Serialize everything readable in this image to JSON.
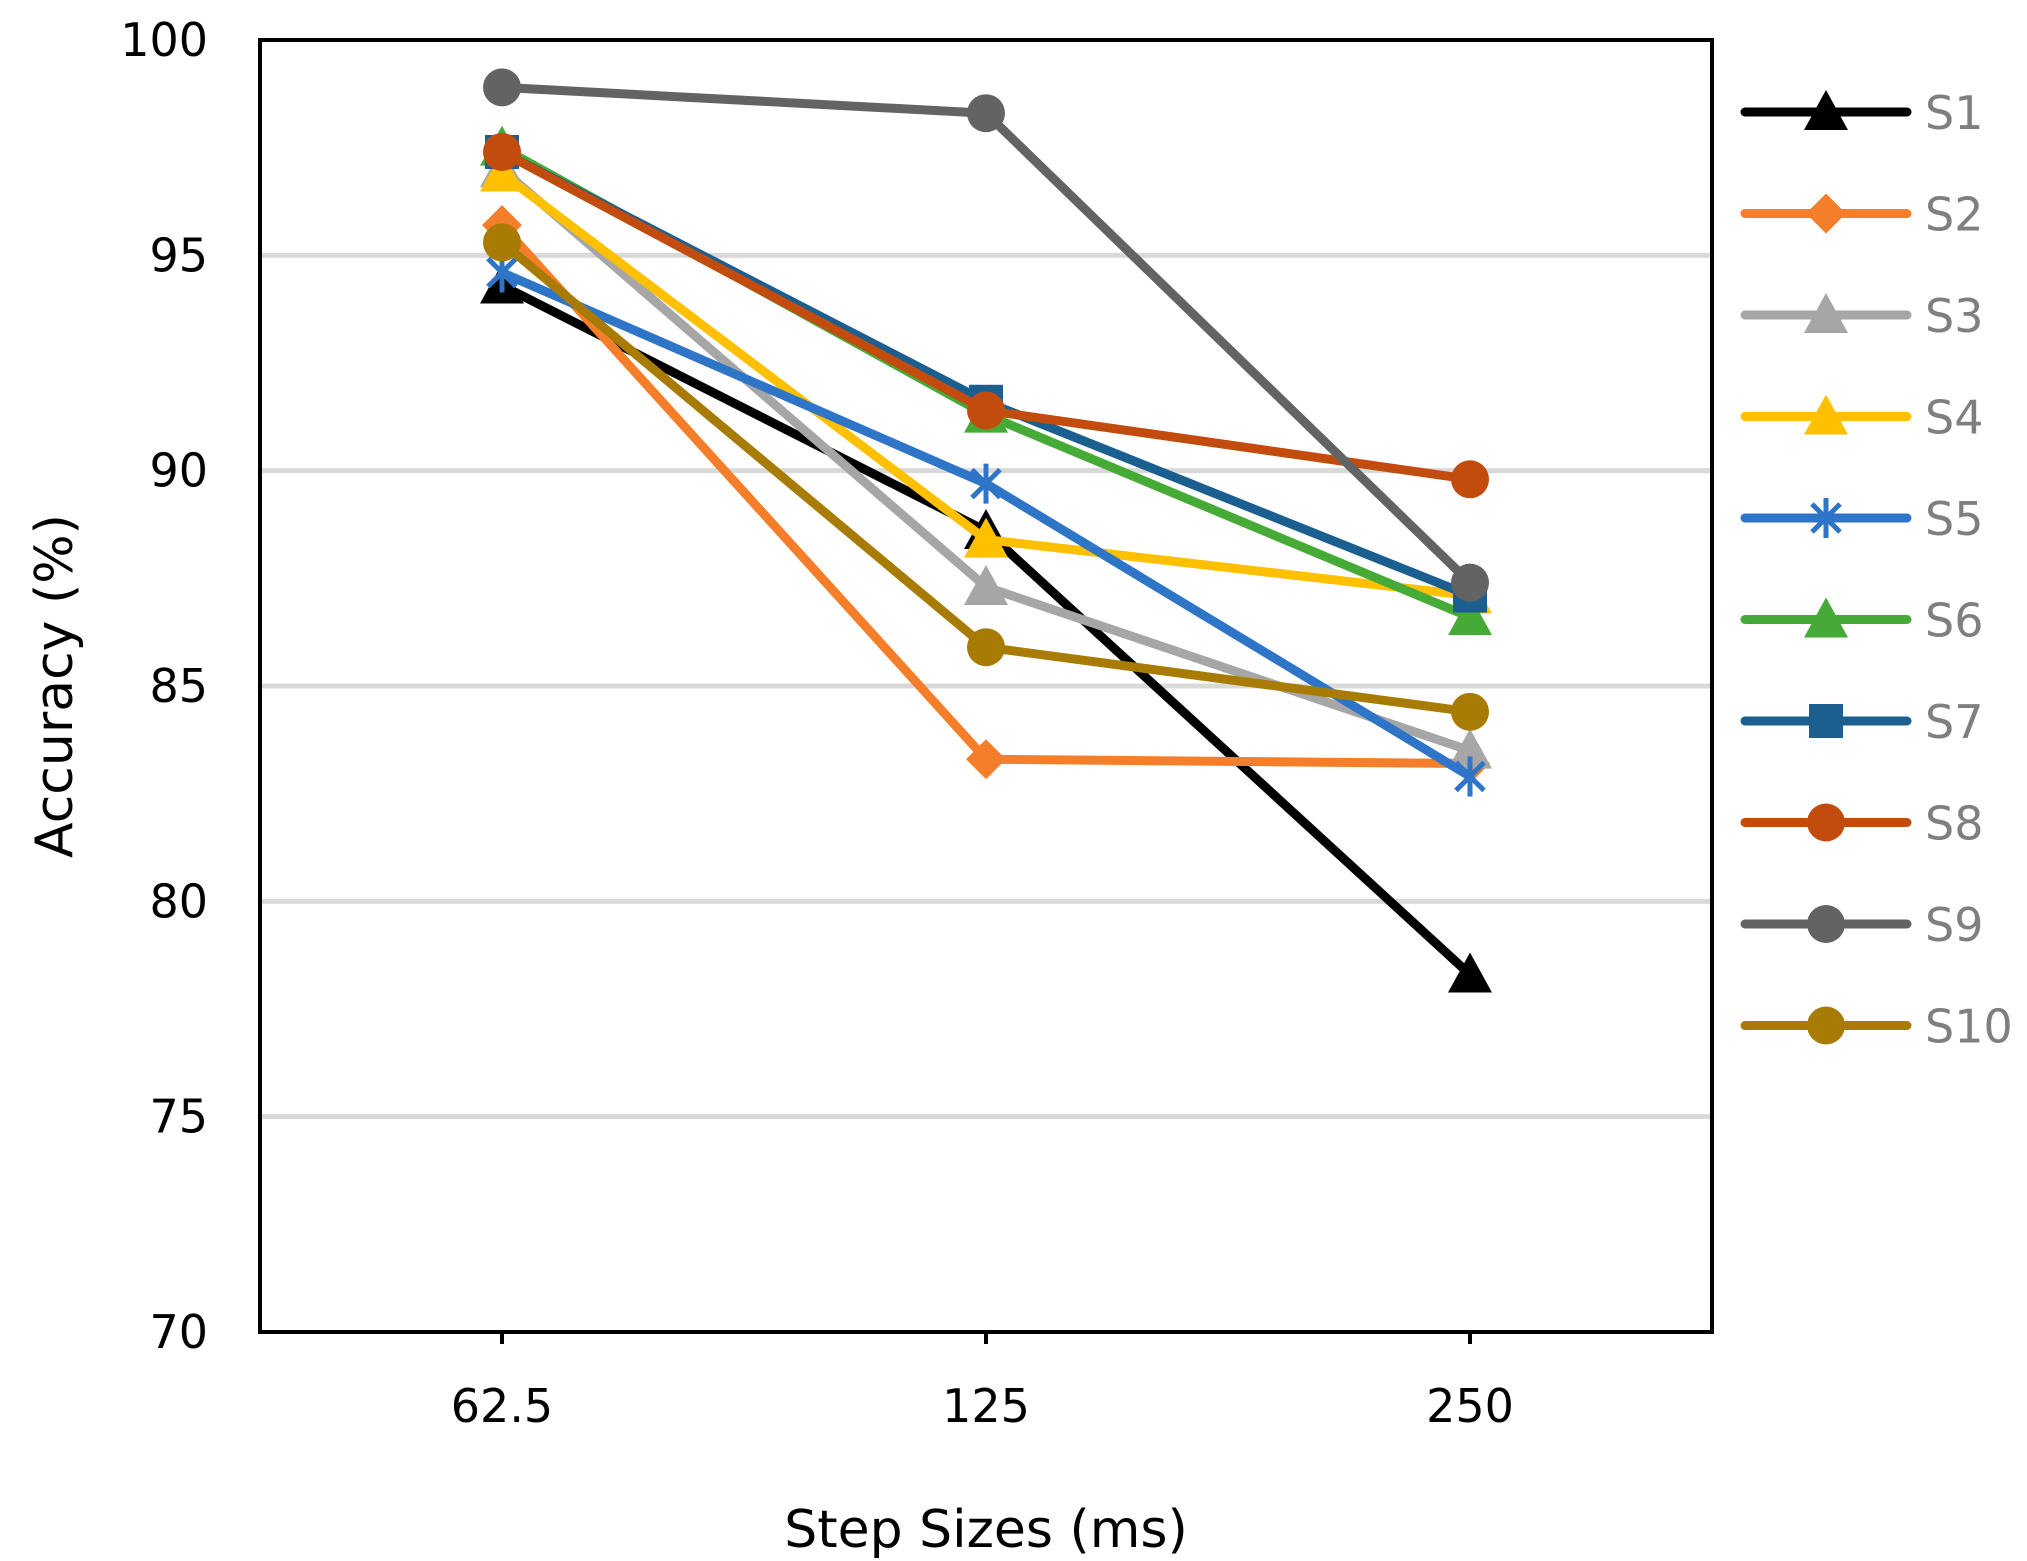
{
  "chart_data": {
    "type": "line",
    "title": "",
    "xlabel": "Step Sizes (ms)",
    "ylabel": "Accuracy (%)",
    "categories": [
      "62.5",
      "125",
      "250"
    ],
    "ylim": [
      70,
      100
    ],
    "yticks": [
      70,
      75,
      80,
      85,
      90,
      95,
      100
    ],
    "grid": true,
    "legend_position": "right",
    "series": [
      {
        "name": "S1",
        "color": "#000000",
        "marker": "triangle",
        "values": [
          94.3,
          88.6,
          78.3
        ]
      },
      {
        "name": "S2",
        "color": "#f47e2a",
        "marker": "diamond",
        "values": [
          95.7,
          83.3,
          83.2
        ]
      },
      {
        "name": "S3",
        "color": "#a6a6a6",
        "marker": "triangle",
        "values": [
          97.0,
          87.3,
          83.5
        ]
      },
      {
        "name": "S4",
        "color": "#ffc000",
        "marker": "triangle",
        "values": [
          96.9,
          88.4,
          87.1
        ]
      },
      {
        "name": "S5",
        "color": "#2e75c8",
        "marker": "star",
        "values": [
          94.6,
          89.7,
          82.9
        ]
      },
      {
        "name": "S6",
        "color": "#46aa36",
        "marker": "triangle",
        "values": [
          97.5,
          91.3,
          86.6
        ]
      },
      {
        "name": "S7",
        "color": "#1b5f91",
        "marker": "square",
        "values": [
          97.4,
          91.6,
          87.1
        ]
      },
      {
        "name": "S8",
        "color": "#c24c0e",
        "marker": "circle",
        "values": [
          97.4,
          91.4,
          89.8
        ]
      },
      {
        "name": "S9",
        "color": "#636363",
        "marker": "circle",
        "values": [
          98.9,
          98.3,
          87.4
        ]
      },
      {
        "name": "S10",
        "color": "#a87c04",
        "marker": "circle",
        "values": [
          95.3,
          85.9,
          84.4
        ]
      }
    ]
  }
}
